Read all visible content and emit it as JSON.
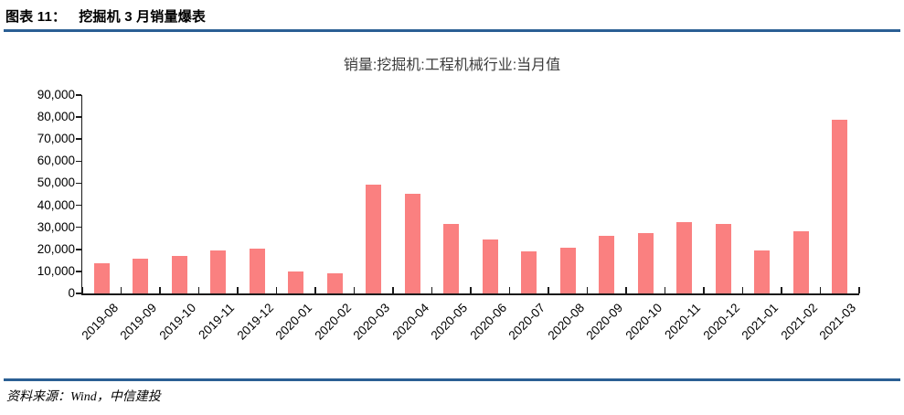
{
  "header": {
    "label": "图表 11：",
    "title": "挖掘机 3 月销量爆表"
  },
  "chart_data": {
    "type": "bar",
    "title": "销量:挖掘机:工程机械行业:当月值",
    "categories": [
      "2019-08",
      "2019-09",
      "2019-10",
      "2019-11",
      "2019-12",
      "2020-01",
      "2020-02",
      "2020-03",
      "2020-04",
      "2020-05",
      "2020-06",
      "2020-07",
      "2020-08",
      "2020-09",
      "2020-10",
      "2020-11",
      "2020-12",
      "2021-01",
      "2021-02",
      "2021-03"
    ],
    "values": [
      13800,
      15800,
      16800,
      19300,
      20200,
      9900,
      9300,
      49400,
      45400,
      31700,
      24600,
      19100,
      20900,
      26000,
      27300,
      32200,
      31500,
      19600,
      28300,
      79000
    ],
    "xlabel": "",
    "ylabel": "",
    "ylim": [
      0,
      90000
    ],
    "ytick_labels": [
      "0",
      "10,000",
      "20,000",
      "30,000",
      "40,000",
      "50,000",
      "60,000",
      "70,000",
      "80,000",
      "90,000"
    ],
    "grid": false,
    "legend": "none",
    "bar_color": "#FA8080"
  },
  "footer": {
    "source": "资料来源：Wind，中信建投"
  },
  "colors": {
    "rule": "#2B5F94",
    "bar": "#FA8080",
    "axis": "#1A1A1A"
  }
}
